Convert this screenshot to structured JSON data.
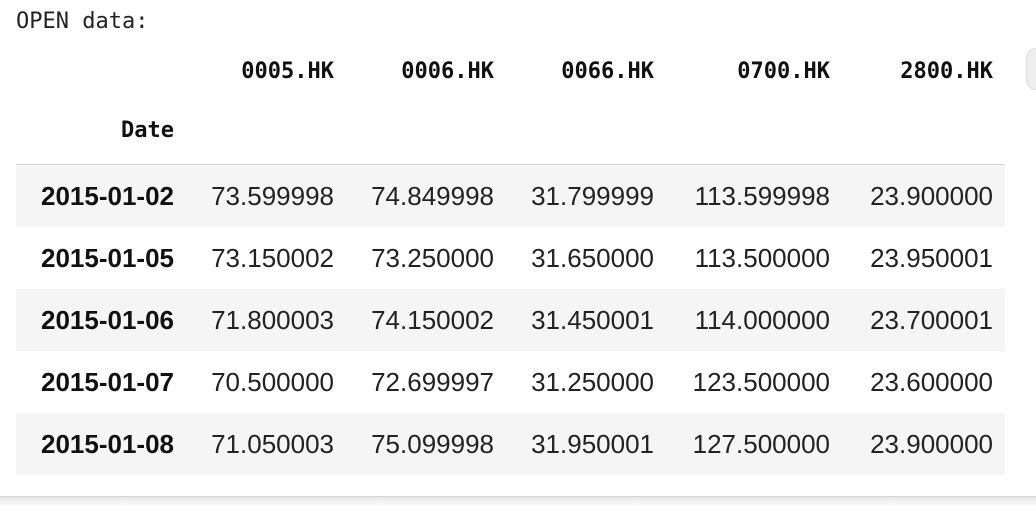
{
  "output": {
    "label": "OPEN data:"
  },
  "table": {
    "index_name": "Date",
    "columns": [
      "0005.HK",
      "0006.HK",
      "0066.HK",
      "0700.HK",
      "2800.HK"
    ],
    "rows": [
      {
        "index": "2015-01-02",
        "values": [
          "73.599998",
          "74.849998",
          "31.799999",
          "113.599998",
          "23.900000"
        ]
      },
      {
        "index": "2015-01-05",
        "values": [
          "73.150002",
          "73.250000",
          "31.650000",
          "113.500000",
          "23.950001"
        ]
      },
      {
        "index": "2015-01-06",
        "values": [
          "71.800003",
          "74.150002",
          "31.450001",
          "114.000000",
          "23.700001"
        ]
      },
      {
        "index": "2015-01-07",
        "values": [
          "70.500000",
          "72.699997",
          "31.250000",
          "123.500000",
          "23.600000"
        ]
      },
      {
        "index": "2015-01-08",
        "values": [
          "71.050003",
          "75.099998",
          "31.950001",
          "127.500000",
          "23.900000"
        ]
      }
    ]
  }
}
